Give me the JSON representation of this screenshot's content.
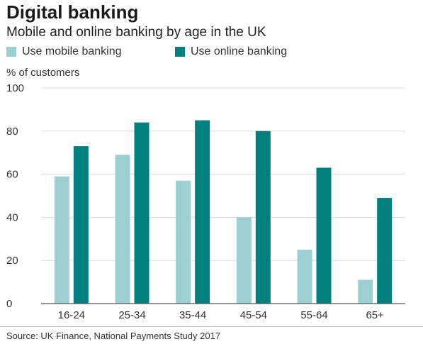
{
  "title": "Digital banking",
  "subtitle": "Mobile and online banking by age in the UK",
  "legend": [
    {
      "label": "Use mobile banking",
      "color": "#9ccfcf"
    },
    {
      "label": "Use online banking",
      "color": "#007f7f"
    }
  ],
  "source": "Source: UK Finance, National Payments Study 2017",
  "chart_data": {
    "type": "bar",
    "ylabel": "% of customers",
    "xlabel": "",
    "ylim": [
      0,
      100
    ],
    "yticks": [
      0,
      20,
      40,
      60,
      80,
      100
    ],
    "grid": true,
    "legend_position": "top",
    "categories": [
      "16-24",
      "25-34",
      "35-44",
      "45-54",
      "55-64",
      "65+"
    ],
    "series": [
      {
        "name": "Use mobile banking",
        "color": "#9ccfcf",
        "values": [
          59,
          69,
          57,
          40,
          25,
          11
        ]
      },
      {
        "name": "Use online banking",
        "color": "#007f7f",
        "values": [
          73,
          84,
          85,
          80,
          63,
          49
        ]
      }
    ]
  }
}
